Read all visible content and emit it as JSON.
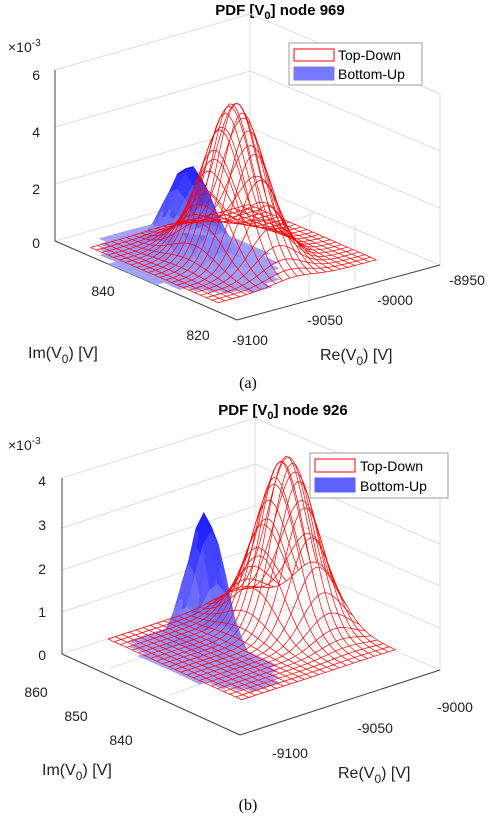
{
  "chart_data": [
    {
      "type": "surface3d",
      "title": "PDF [V",
      "title_sub": "0",
      "title_rest": "] node 969",
      "caption": "(a)",
      "z_exponent_prefix": "×10",
      "z_exponent": "-3",
      "xlabel_main": "Re(V",
      "xlabel_sub": "0",
      "xlabel_rest": ") [V]",
      "ylabel_main": "Im(V",
      "ylabel_sub": "0",
      "ylabel_rest": ") [V]",
      "x_ticks": [
        "-9100",
        "-9050",
        "-9000",
        "-8950"
      ],
      "y_ticks": [
        "820",
        "840"
      ],
      "z_ticks": [
        "0",
        "2",
        "4",
        "6"
      ],
      "xlim": [
        -9110,
        -8950
      ],
      "ylim": [
        815,
        855
      ],
      "zlim": [
        0,
        6
      ],
      "legend_position": "top-right",
      "series": [
        {
          "name": "Top-Down",
          "style": "mesh",
          "color": "#ff0000",
          "peak_x": -9040,
          "peak_y": 835,
          "peak_z": 5.4,
          "sigma_x": 16,
          "sigma_y": 5
        },
        {
          "name": "Bottom-Up",
          "style": "surface",
          "color": "#5a5aff",
          "peak_x": -9065,
          "peak_y": 838,
          "peak_z": 3.3,
          "sigma_x": 13,
          "sigma_y": 4
        }
      ]
    },
    {
      "type": "surface3d",
      "title": "PDF [V",
      "title_sub": "0",
      "title_rest": "] node 926",
      "caption": "(b)",
      "z_exponent_prefix": "×10",
      "z_exponent": "-3",
      "xlabel_main": "Re(V",
      "xlabel_sub": "0",
      "xlabel_rest": ") [V]",
      "ylabel_main": "Im(V",
      "ylabel_sub": "0",
      "ylabel_rest": ") [V]",
      "x_ticks": [
        "-9100",
        "-9050",
        "-9000"
      ],
      "y_ticks": [
        "840",
        "850",
        "860"
      ],
      "z_ticks": [
        "0",
        "1",
        "2",
        "3",
        "4"
      ],
      "xlim": [
        -9120,
        -8990
      ],
      "ylim": [
        834,
        866
      ],
      "zlim": [
        0,
        4.3
      ],
      "legend_position": "top-right",
      "series": [
        {
          "name": "Top-Down",
          "style": "mesh",
          "color": "#ff0000",
          "peak_x": -9010,
          "peak_y": 856,
          "peak_z": 4.1,
          "sigma_x": 13,
          "sigma_y": 4
        },
        {
          "name": "Bottom-Up",
          "style": "surface",
          "color": "#2020ff",
          "peak_x": -9070,
          "peak_y": 854,
          "peak_z": 3.6,
          "sigma_x": 7,
          "sigma_y": 3
        }
      ]
    }
  ]
}
